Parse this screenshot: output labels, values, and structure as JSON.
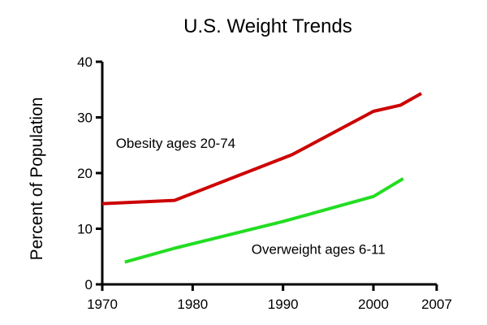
{
  "chart_data": {
    "type": "line",
    "title": "U.S. Weight Trends",
    "xlabel": "",
    "ylabel": "Percent of Population",
    "xlim": [
      1970,
      2007
    ],
    "ylim": [
      0,
      40
    ],
    "x_ticks": [
      {
        "value": 1970,
        "label": "1970"
      },
      {
        "value": 1980,
        "label": "1980"
      },
      {
        "value": 1990,
        "label": "1990"
      },
      {
        "value": 2000,
        "label": "2000"
      },
      {
        "value": 2007,
        "label": "2007"
      }
    ],
    "y_ticks": [
      {
        "value": 0,
        "label": "0"
      },
      {
        "value": 10,
        "label": "10"
      },
      {
        "value": 20,
        "label": "20"
      },
      {
        "value": 30,
        "label": "30"
      },
      {
        "value": 40,
        "label": "40"
      }
    ],
    "grid": false,
    "series": [
      {
        "name": "Obesity ages 20-74",
        "color": "#cc0000",
        "points": [
          {
            "x": 1970,
            "y": 14.5
          },
          {
            "x": 1978,
            "y": 15.1
          },
          {
            "x": 1991,
            "y": 23.3
          },
          {
            "x": 2000,
            "y": 31.1
          },
          {
            "x": 2003,
            "y": 32.2
          },
          {
            "x": 2005.3,
            "y": 34.3
          }
        ],
        "label_anchor": {
          "x": 1971.5,
          "y": 24.5
        }
      },
      {
        "name": "Overweight ages 6-11",
        "color": "#22dd22",
        "points": [
          {
            "x": 1972.5,
            "y": 4.0
          },
          {
            "x": 1978,
            "y": 6.5
          },
          {
            "x": 1990,
            "y": 11.3
          },
          {
            "x": 2000,
            "y": 15.8
          },
          {
            "x": 2003.3,
            "y": 19.0
          }
        ],
        "label_anchor": {
          "x": 1986.5,
          "y": 5.5
        }
      }
    ]
  }
}
